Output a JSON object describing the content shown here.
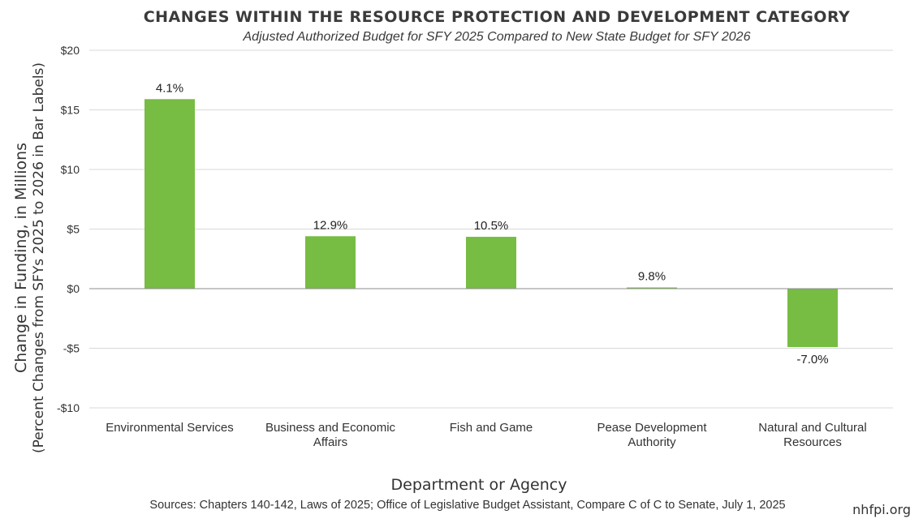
{
  "chart_data": {
    "type": "bar",
    "title": "CHANGES WITHIN THE RESOURCE PROTECTION AND DEVELOPMENT CATEGORY",
    "subtitle": "Adjusted Authorized Budget for SFY 2025 Compared to New State Budget for SFY 2026",
    "categories": [
      [
        "Environmental Services"
      ],
      [
        "Business and Economic",
        "Affairs"
      ],
      [
        "Fish and Game"
      ],
      [
        "Pease Development",
        "Authority"
      ],
      [
        "Natural and Cultural",
        "Resources"
      ]
    ],
    "values": [
      15.9,
      4.4,
      4.35,
      0.1,
      -4.9
    ],
    "data_labels": [
      "4.1%",
      "12.9%",
      "10.5%",
      "9.8%",
      "-7.0%"
    ],
    "xlabel": "Department or Agency",
    "ylabel": "Change in Funding, in Millions",
    "ylabel_secondary": "(Percent Changes from SFYs 2025 to 2026 in Bar Labels)",
    "ylim": [
      -10,
      20
    ],
    "yticks": [
      20,
      15,
      10,
      5,
      0,
      -5,
      -10
    ],
    "ytick_labels": [
      "$20",
      "$15",
      "$10",
      "$5",
      "$0",
      "-$5",
      "-$10"
    ],
    "grid": true,
    "bar_color": "#77bc43",
    "source": "Sources: Chapters 140-142, Laws of 2025; Office of Legislative Budget Assistant, Compare C of C to Senate, July 1, 2025",
    "brand": "nhfpi.org"
  }
}
